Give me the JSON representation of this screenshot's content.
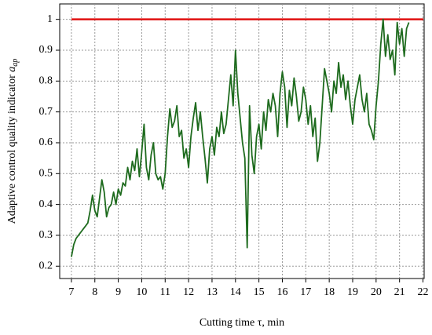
{
  "chart_data": {
    "type": "line",
    "xlabel": "Cutting time τ, min",
    "ylabel": "Adaptive control quality indicator",
    "ylabel_symbol": "a",
    "ylabel_subscript": "ap",
    "xlim": [
      6.5,
      22.05
    ],
    "ylim": [
      0.16,
      1.05
    ],
    "xticks": [
      7,
      8,
      9,
      10,
      11,
      12,
      13,
      14,
      15,
      16,
      17,
      18,
      19,
      20,
      21,
      22
    ],
    "yticks": [
      0.2,
      0.3,
      0.4,
      0.5,
      0.6,
      0.7,
      0.8,
      0.9,
      1
    ],
    "grid": true,
    "reference_line": {
      "value": 1,
      "color": "#e01010"
    },
    "x": [
      7.0,
      7.1,
      7.2,
      7.3,
      7.4,
      7.5,
      7.6,
      7.7,
      7.8,
      7.9,
      8.0,
      8.1,
      8.2,
      8.3,
      8.4,
      8.5,
      8.6,
      8.7,
      8.8,
      8.9,
      9.0,
      9.1,
      9.2,
      9.3,
      9.4,
      9.5,
      9.6,
      9.7,
      9.8,
      9.9,
      10.0,
      10.1,
      10.2,
      10.3,
      10.4,
      10.5,
      10.6,
      10.7,
      10.8,
      10.9,
      11.0,
      11.1,
      11.2,
      11.3,
      11.4,
      11.5,
      11.6,
      11.7,
      11.8,
      11.9,
      12.0,
      12.1,
      12.2,
      12.3,
      12.4,
      12.5,
      12.6,
      12.7,
      12.8,
      12.9,
      13.0,
      13.1,
      13.2,
      13.3,
      13.4,
      13.5,
      13.6,
      13.7,
      13.8,
      13.9,
      14.0,
      14.1,
      14.2,
      14.3,
      14.4,
      14.5,
      14.6,
      14.7,
      14.8,
      14.9,
      15.0,
      15.1,
      15.2,
      15.3,
      15.4,
      15.5,
      15.6,
      15.7,
      15.8,
      15.9,
      16.0,
      16.1,
      16.2,
      16.3,
      16.4,
      16.5,
      16.6,
      16.7,
      16.8,
      16.9,
      17.0,
      17.1,
      17.2,
      17.3,
      17.4,
      17.5,
      17.6,
      17.7,
      17.8,
      17.9,
      18.0,
      18.1,
      18.2,
      18.3,
      18.4,
      18.5,
      18.6,
      18.7,
      18.8,
      18.9,
      19.0,
      19.1,
      19.2,
      19.3,
      19.4,
      19.5,
      19.6,
      19.7,
      19.8,
      19.9,
      20.0,
      20.1,
      20.2,
      20.3,
      20.4,
      20.5,
      20.6,
      20.7,
      20.8,
      20.9,
      21.0,
      21.1,
      21.2,
      21.3,
      21.4
    ],
    "series": [
      {
        "color": "#1e6b1e",
        "values": [
          0.23,
          0.27,
          0.29,
          0.3,
          0.31,
          0.32,
          0.33,
          0.34,
          0.38,
          0.43,
          0.38,
          0.36,
          0.42,
          0.48,
          0.44,
          0.36,
          0.39,
          0.4,
          0.44,
          0.4,
          0.45,
          0.43,
          0.47,
          0.46,
          0.52,
          0.48,
          0.54,
          0.51,
          0.58,
          0.49,
          0.57,
          0.66,
          0.52,
          0.48,
          0.56,
          0.6,
          0.5,
          0.48,
          0.49,
          0.45,
          0.5,
          0.62,
          0.71,
          0.65,
          0.67,
          0.72,
          0.62,
          0.64,
          0.55,
          0.58,
          0.52,
          0.62,
          0.68,
          0.73,
          0.64,
          0.7,
          0.62,
          0.55,
          0.47,
          0.58,
          0.62,
          0.56,
          0.65,
          0.62,
          0.7,
          0.63,
          0.66,
          0.74,
          0.82,
          0.72,
          0.9,
          0.76,
          0.68,
          0.6,
          0.55,
          0.26,
          0.72,
          0.56,
          0.5,
          0.62,
          0.66,
          0.58,
          0.7,
          0.64,
          0.74,
          0.7,
          0.76,
          0.72,
          0.62,
          0.76,
          0.83,
          0.78,
          0.65,
          0.77,
          0.72,
          0.81,
          0.75,
          0.67,
          0.7,
          0.78,
          0.74,
          0.66,
          0.72,
          0.62,
          0.68,
          0.54,
          0.6,
          0.72,
          0.84,
          0.8,
          0.76,
          0.7,
          0.8,
          0.76,
          0.86,
          0.78,
          0.82,
          0.74,
          0.8,
          0.72,
          0.66,
          0.74,
          0.78,
          0.82,
          0.74,
          0.7,
          0.76,
          0.66,
          0.64,
          0.61,
          0.72,
          0.8,
          0.92,
          1.0,
          0.88,
          0.95,
          0.87,
          0.9,
          0.82,
          0.99,
          0.92,
          0.97,
          0.88,
          0.97,
          0.99
        ]
      }
    ]
  }
}
